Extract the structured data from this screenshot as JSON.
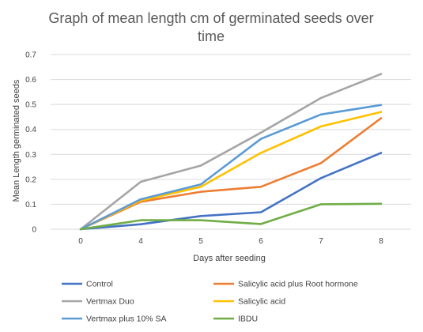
{
  "chart_data": {
    "type": "line",
    "title_lines": [
      "Graph of mean length cm of germinated seeds over",
      "time"
    ],
    "xlabel": "Days after seeding",
    "ylabel": "Mean Length germinated seeds",
    "categories": [
      "0",
      "4",
      "5",
      "6",
      "7",
      "8"
    ],
    "y_ticks": [
      0,
      0.1,
      0.2,
      0.3,
      0.4,
      0.5,
      0.6,
      0.7
    ],
    "ylim": [
      0,
      0.7
    ],
    "grid": "horizontal",
    "legend_position": "bottom",
    "series": [
      {
        "name": "Control",
        "color": "#4472C4",
        "values": [
          0,
          0.02,
          0.053,
          0.068,
          0.205,
          0.306
        ]
      },
      {
        "name": "Salicylic acid plus Root hormone",
        "color": "#ED7D31",
        "values": [
          0,
          0.11,
          0.15,
          0.17,
          0.265,
          0.445
        ]
      },
      {
        "name": "Vertmax Duo",
        "color": "#A5A5A5",
        "values": [
          0,
          0.19,
          0.255,
          0.387,
          0.526,
          0.622
        ]
      },
      {
        "name": "Salicylic acid",
        "color": "#FFC000",
        "values": [
          0,
          0.115,
          0.17,
          0.306,
          0.412,
          0.47
        ]
      },
      {
        "name": "Vertmax plus 10% SA",
        "color": "#5B9BD5",
        "values": [
          0,
          0.12,
          0.18,
          0.362,
          0.46,
          0.498
        ]
      },
      {
        "name": "IBDU",
        "color": "#70AD47",
        "values": [
          0,
          0.036,
          0.036,
          0.021,
          0.1,
          0.102
        ]
      }
    ]
  }
}
